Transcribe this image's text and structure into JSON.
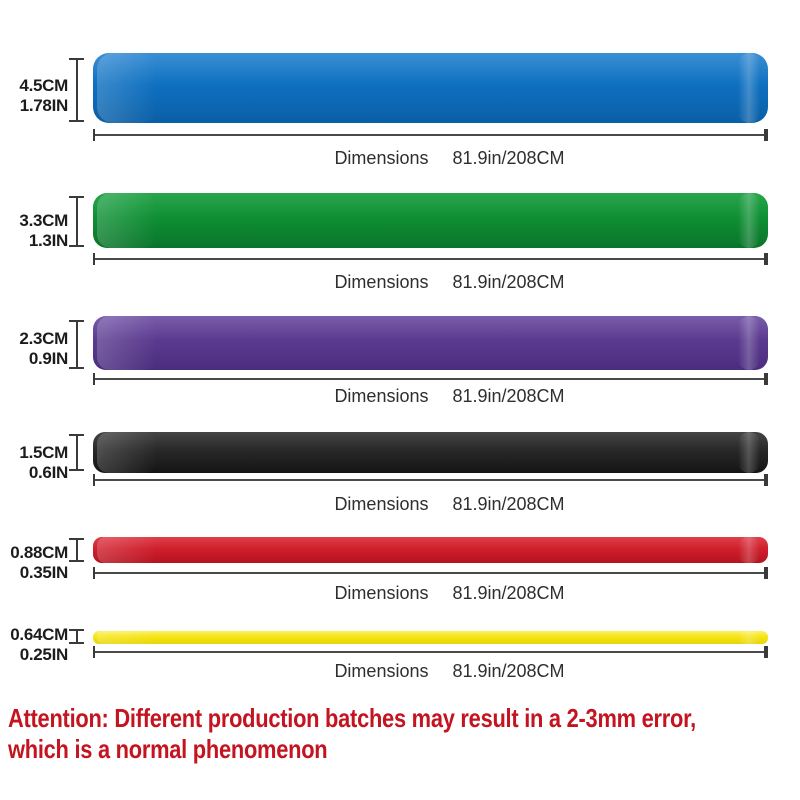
{
  "bands": [
    {
      "id": "blue",
      "width_cm": "4.5CM",
      "width_in": "1.78IN",
      "dim_label": "Dimensions",
      "dim_value": "81.9in/208CM",
      "color": "#0e70c0",
      "color_light": "#3b8fd4",
      "color_dark": "#0a5fa6"
    },
    {
      "id": "green",
      "width_cm": "3.3CM",
      "width_in": "1.3IN",
      "dim_label": "Dimensions",
      "dim_value": "81.9in/208CM",
      "color": "#0f8f35",
      "color_light": "#2aa64d",
      "color_dark": "#0a7429"
    },
    {
      "id": "purple",
      "width_cm": "2.3CM",
      "width_in": "0.9IN",
      "dim_label": "Dimensions",
      "dim_value": "81.9in/208CM",
      "color": "#5a3a8e",
      "color_light": "#7a5dab",
      "color_dark": "#4b2d7e"
    },
    {
      "id": "black",
      "width_cm": "1.5CM",
      "width_in": "0.6IN",
      "dim_label": "Dimensions",
      "dim_value": "81.9in/208CM",
      "color": "#282828",
      "color_light": "#454545",
      "color_dark": "#141414"
    },
    {
      "id": "red",
      "width_cm": "0.88CM",
      "width_in": "0.35IN",
      "dim_label": "Dimensions",
      "dim_value": "81.9in/208CM",
      "color": "#d01f2c",
      "color_light": "#de3f4b",
      "color_dark": "#b51220"
    },
    {
      "id": "yellow",
      "width_cm": "0.64CM",
      "width_in": "0.25IN",
      "dim_label": "Dimensions",
      "dim_value": "81.9in/208CM",
      "color": "#f5e412",
      "color_light": "#fbf267",
      "color_dark": "#e8d40a"
    }
  ],
  "attention": {
    "line1": "Attention: Different production batches may result in a 2-3mm error,",
    "line2": "which is a normal phenomenon",
    "color": "#c41420"
  },
  "measure_color": "#3a3a3a",
  "text_color": "#2e2e2e"
}
